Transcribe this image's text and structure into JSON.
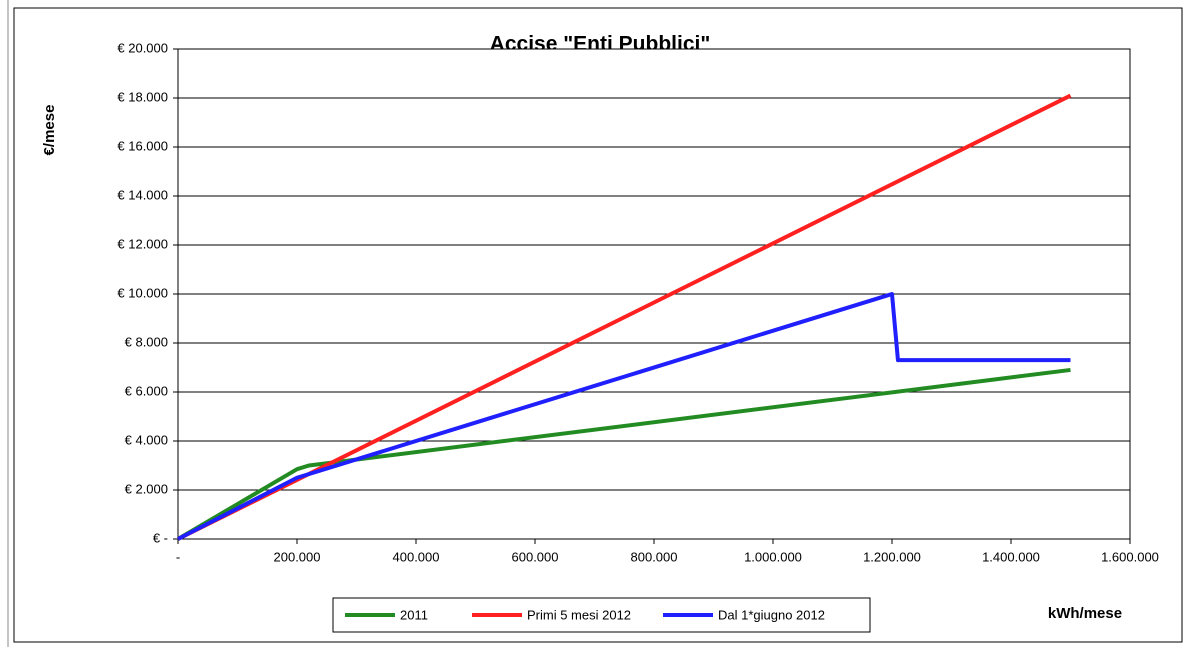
{
  "chart_data": {
    "type": "line",
    "title": "Accise \"Enti Pubblici\"",
    "x_label": "kWh/mese",
    "y_label": "€/mese",
    "xlim": [
      0,
      1600000
    ],
    "ylim": [
      0,
      20000
    ],
    "xticks": [
      {
        "value": 0,
        "label": "-"
      },
      {
        "value": 200000,
        "label": "200.000"
      },
      {
        "value": 400000,
        "label": "400.000"
      },
      {
        "value": 600000,
        "label": "600.000"
      },
      {
        "value": 800000,
        "label": "800.000"
      },
      {
        "value": 1000000,
        "label": "1.000.000"
      },
      {
        "value": 1200000,
        "label": "1.200.000"
      },
      {
        "value": 1400000,
        "label": "1.400.000"
      },
      {
        "value": 1600000,
        "label": "1.600.000"
      }
    ],
    "yticks": [
      {
        "value": 0,
        "label": "€ -"
      },
      {
        "value": 2000,
        "label": "€ 2.000"
      },
      {
        "value": 4000,
        "label": "€ 4.000"
      },
      {
        "value": 6000,
        "label": "€ 6.000"
      },
      {
        "value": 8000,
        "label": "€ 8.000"
      },
      {
        "value": 10000,
        "label": "€ 10.000"
      },
      {
        "value": 12000,
        "label": "€ 12.000"
      },
      {
        "value": 14000,
        "label": "€ 14.000"
      },
      {
        "value": 16000,
        "label": "€ 16.000"
      },
      {
        "value": 18000,
        "label": "€ 18.000"
      },
      {
        "value": 20000,
        "label": "€ 20.000"
      }
    ],
    "grid": true,
    "legend": "bottom",
    "series": [
      {
        "name": "2011",
        "color": "#228b22",
        "x": [
          0,
          200000,
          220000,
          1500000
        ],
        "values": [
          0,
          2850,
          3000,
          6900
        ]
      },
      {
        "name": "Primi 5 mesi 2012",
        "color": "#ff2020",
        "x": [
          0,
          1500000
        ],
        "values": [
          0,
          18100
        ]
      },
      {
        "name": "Dal 1*giugno 2012",
        "color": "#2020ff",
        "x": [
          0,
          200000,
          1200000,
          1210000,
          1500000
        ],
        "values": [
          0,
          2500,
          10000,
          7300,
          7300
        ]
      }
    ]
  }
}
